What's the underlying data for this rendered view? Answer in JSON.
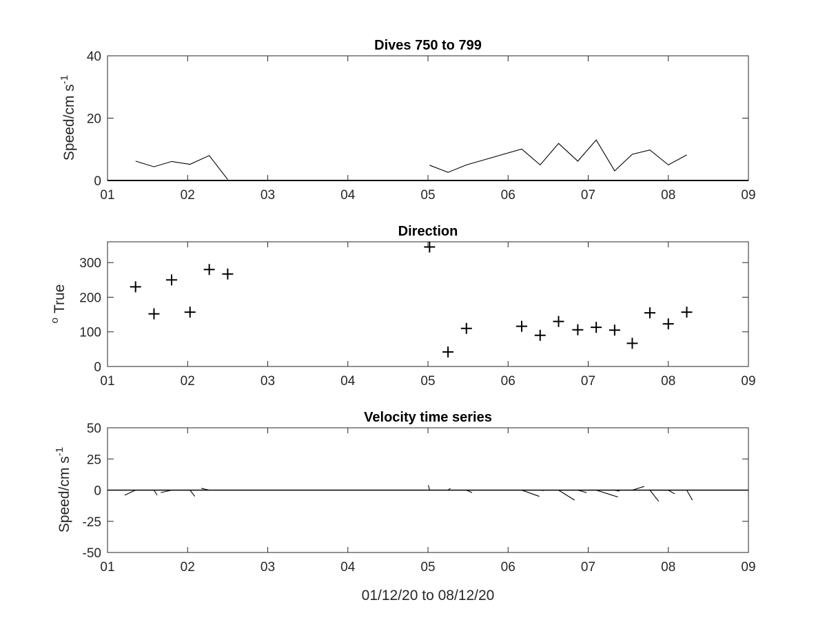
{
  "colors": {
    "axis": "#262626",
    "data": "#000000",
    "background": "#ffffff"
  },
  "chart_data": [
    {
      "type": "line",
      "title": "Dives 750 to 799",
      "ylabel": "Speed/cm s",
      "ylabel_superscript": "-1",
      "xlim": [
        1,
        9
      ],
      "ylim": [
        0,
        40
      ],
      "xticks": [
        1,
        2,
        3,
        4,
        5,
        6,
        7,
        8,
        9
      ],
      "xtick_labels": [
        "01",
        "02",
        "03",
        "04",
        "05",
        "06",
        "07",
        "08",
        "09"
      ],
      "yticks": [
        0,
        20,
        40
      ],
      "ytick_labels": [
        "0",
        "20",
        "40"
      ],
      "zero_line": true,
      "series": [
        {
          "x": [
            1.35,
            1.58,
            1.8,
            2.03,
            2.27,
            2.5
          ],
          "y": [
            6.2,
            4.4,
            6.1,
            5.2,
            8.0,
            0.3
          ]
        },
        {
          "x": [
            5.02,
            5.25,
            5.48,
            6.17,
            6.4,
            6.63,
            6.87,
            7.1,
            7.33,
            7.55,
            7.77,
            8.0,
            8.23
          ],
          "y": [
            4.9,
            2.6,
            5.0,
            10.1,
            5.0,
            11.9,
            6.2,
            13.0,
            3.1,
            8.4,
            9.8,
            5.0,
            8.2
          ]
        }
      ]
    },
    {
      "type": "scatter",
      "title": "Direction",
      "ylabel": "True",
      "ylabel_prefix": "o",
      "marker": "+",
      "xlim": [
        1,
        9
      ],
      "ylim": [
        0,
        360
      ],
      "xticks": [
        1,
        2,
        3,
        4,
        5,
        6,
        7,
        8,
        9
      ],
      "xtick_labels": [
        "01",
        "02",
        "03",
        "04",
        "05",
        "06",
        "07",
        "08",
        "09"
      ],
      "yticks": [
        0,
        100,
        200,
        300
      ],
      "ytick_labels": [
        "0",
        "100",
        "200",
        "300"
      ],
      "x": [
        1.35,
        1.58,
        1.8,
        2.03,
        2.27,
        2.5,
        5.02,
        5.25,
        5.48,
        6.17,
        6.4,
        6.63,
        6.87,
        7.1,
        7.33,
        7.55,
        7.77,
        8.0,
        8.23
      ],
      "y": [
        230,
        152,
        250,
        157,
        280,
        267,
        345,
        42,
        110,
        116,
        90,
        130,
        106,
        113,
        105,
        67,
        155,
        123,
        157
      ]
    },
    {
      "type": "line",
      "title": "Velocity time series",
      "ylabel": "Speed/cm s",
      "ylabel_superscript": "-1",
      "xlabel": "01/12/20 to 08/12/20",
      "xlim": [
        1,
        9
      ],
      "ylim": [
        -50,
        50
      ],
      "xticks": [
        1,
        2,
        3,
        4,
        5,
        6,
        7,
        8,
        9
      ],
      "xtick_labels": [
        "01",
        "02",
        "03",
        "04",
        "05",
        "06",
        "07",
        "08",
        "09"
      ],
      "yticks": [
        -50,
        -25,
        0,
        25,
        50
      ],
      "ytick_labels": [
        "-50",
        "-25",
        "0",
        "25",
        "50"
      ],
      "zero_line": true,
      "sticks": [
        {
          "x": 1.35,
          "u": -0.135,
          "v": -4.0
        },
        {
          "x": 1.58,
          "u": 0.04,
          "v": -4.0
        },
        {
          "x": 1.8,
          "u": -0.135,
          "v": -2.0
        },
        {
          "x": 2.03,
          "u": 0.06,
          "v": -5.0
        },
        {
          "x": 2.27,
          "u": -0.1,
          "v": 1.5
        },
        {
          "x": 2.5,
          "u": -0.01,
          "v": 0.2
        },
        {
          "x": 5.02,
          "u": -0.015,
          "v": 4.0
        },
        {
          "x": 5.25,
          "u": 0.03,
          "v": 1.5
        },
        {
          "x": 5.48,
          "u": 0.07,
          "v": -2.0
        },
        {
          "x": 6.17,
          "u": 0.22,
          "v": -5.0
        },
        {
          "x": 6.4,
          "u": 0.05,
          "v": -0.3
        },
        {
          "x": 6.63,
          "u": 0.2,
          "v": -8.0
        },
        {
          "x": 6.87,
          "u": 0.11,
          "v": -2.0
        },
        {
          "x": 7.1,
          "u": 0.27,
          "v": -5.5
        },
        {
          "x": 7.33,
          "u": 0.06,
          "v": -0.8
        },
        {
          "x": 7.55,
          "u": 0.15,
          "v": 3.0
        },
        {
          "x": 7.77,
          "u": 0.11,
          "v": -9.0
        },
        {
          "x": 8.0,
          "u": 0.08,
          "v": -3.0
        },
        {
          "x": 8.23,
          "u": 0.07,
          "v": -8.0
        }
      ]
    }
  ]
}
